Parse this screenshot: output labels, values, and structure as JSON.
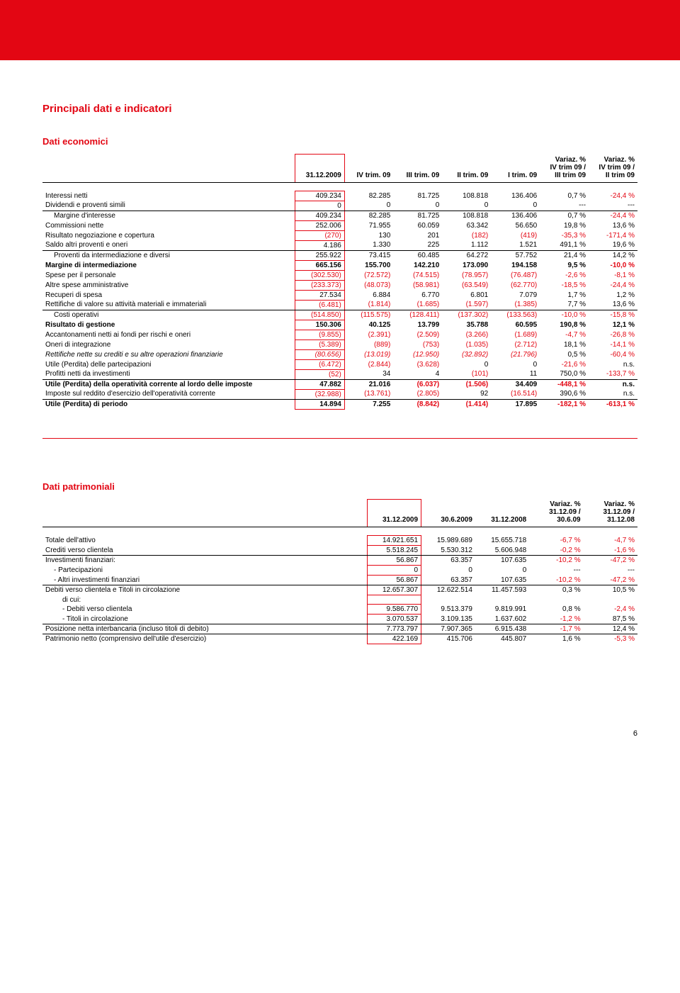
{
  "page_number": "6",
  "section_title": "Principali dati e indicatori",
  "economic": {
    "title": "Dati economici",
    "headers": [
      "",
      "31.12.2009",
      "IV trim. 09",
      "III trim. 09",
      "II trim. 09",
      "I trim. 09",
      "Variaz. %\nIV trim 09 /\nIII trim 09",
      "Variaz. %\nIV trim 09 /\nII trim 09"
    ],
    "rows": [
      {
        "l": "Interessi netti",
        "c": "",
        "v": [
          "409.234",
          "82.285",
          "81.725",
          "108.818",
          "136.406",
          "0,7 %",
          "-24,4 %"
        ]
      },
      {
        "l": "Dividendi e proventi simili",
        "c": "",
        "u": 1,
        "v": [
          "0",
          "0",
          "0",
          "0",
          "0",
          "---",
          "---"
        ]
      },
      {
        "l": "Margine d'interesse",
        "c": "indent1",
        "v": [
          "409.234",
          "82.285",
          "81.725",
          "108.818",
          "136.406",
          "0,7 %",
          "-24,4 %"
        ]
      },
      {
        "l": "Commissioni nette",
        "c": "",
        "v": [
          "252.006",
          "71.955",
          "60.059",
          "63.342",
          "56.650",
          "19,8 %",
          "13,6 %"
        ]
      },
      {
        "l": "Risultato negoziazione e copertura",
        "c": "",
        "v": [
          "(270)",
          "130",
          "201",
          "(182)",
          "(419)",
          "-35,3 %",
          "-171,4 %"
        ]
      },
      {
        "l": "Saldo altri proventi e oneri",
        "c": "",
        "u": 1,
        "v": [
          "4.186",
          "1.330",
          "225",
          "1.112",
          "1.521",
          "491,1 %",
          "19,6 %"
        ]
      },
      {
        "l": "Proventi da intermediazione e diversi",
        "c": "indent1",
        "v": [
          "255.922",
          "73.415",
          "60.485",
          "64.272",
          "57.752",
          "21,4 %",
          "14,2 %"
        ]
      },
      {
        "l": "Margine di intermediazione",
        "c": "",
        "b": 1,
        "v": [
          "665.156",
          "155.700",
          "142.210",
          "173.090",
          "194.158",
          "9,5 %",
          "-10,0 %"
        ]
      },
      {
        "l": "Spese per il personale",
        "c": "",
        "v": [
          "(302.530)",
          "(72.572)",
          "(74.515)",
          "(78.957)",
          "(76.487)",
          "-2,6 %",
          "-8,1 %"
        ]
      },
      {
        "l": "Altre spese amministrative",
        "c": "",
        "v": [
          "(233.373)",
          "(48.073)",
          "(58.981)",
          "(63.549)",
          "(62.770)",
          "-18,5 %",
          "-24,4 %"
        ]
      },
      {
        "l": "Recuperi di spesa",
        "c": "",
        "v": [
          "27.534",
          "6.884",
          "6.770",
          "6.801",
          "7.079",
          "1,7 %",
          "1,2 %"
        ]
      },
      {
        "l": "Rettifiche di valore su attività materiali e immateriali",
        "c": "",
        "u": 1,
        "v": [
          "(6.481)",
          "(1.814)",
          "(1.685)",
          "(1.597)",
          "(1.385)",
          "7,7 %",
          "13,6 %"
        ]
      },
      {
        "l": "Costi operativi",
        "c": "indent1",
        "v": [
          "(514.850)",
          "(115.575)",
          "(128.411)",
          "(137.302)",
          "(133.563)",
          "-10,0 %",
          "-15,8 %"
        ]
      },
      {
        "l": "Risultato di gestione",
        "c": "",
        "b": 1,
        "v": [
          "150.306",
          "40.125",
          "13.799",
          "35.788",
          "60.595",
          "190,8 %",
          "12,1 %"
        ]
      },
      {
        "l": "Accantonamenti netti ai fondi per rischi e oneri",
        "c": "",
        "v": [
          "(9.855)",
          "(2.391)",
          "(2.509)",
          "(3.266)",
          "(1.689)",
          "-4,7 %",
          "-26,8 %"
        ]
      },
      {
        "l": "Oneri di integrazione",
        "c": "",
        "v": [
          "(5.389)",
          "(889)",
          "(753)",
          "(1.035)",
          "(2.712)",
          "18,1 %",
          "-14,1 %"
        ]
      },
      {
        "l": "Rettifiche  nette su crediti e su altre operazioni finanziarie",
        "c": "",
        "v": [
          "(80.656)",
          "(13.019)",
          "(12.950)",
          "(32.892)",
          "(21.796)",
          "0,5 %",
          "-60,4 %"
        ],
        "it": 1
      },
      {
        "l": "Utile (Perdita) delle partecipazioni",
        "c": "",
        "v": [
          "(6.472)",
          "(2.844)",
          "(3.628)",
          "0",
          "0",
          "-21,6 %",
          "n.s."
        ]
      },
      {
        "l": "Profitti netti da investimenti",
        "c": "",
        "u": 1,
        "v": [
          "(52)",
          "34",
          "4",
          "(101)",
          "11",
          "750,0 %",
          "-133,7 %"
        ]
      },
      {
        "l": "Utile (Perdita) della operatività corrente al lordo delle imposte",
        "c": "",
        "b": 1,
        "v": [
          "47.882",
          "21.016",
          "(6.037)",
          "(1.506)",
          "34.409",
          "-448,1 %",
          "n.s."
        ]
      },
      {
        "l": "Imposte sul reddito d'esercizio dell'operatività corrente",
        "c": "",
        "u": 1,
        "v": [
          "(32.988)",
          "(13.761)",
          "(2.805)",
          "92",
          "(16.514)",
          "390,6 %",
          "n.s."
        ]
      },
      {
        "l": "Utile (Perdita) di periodo",
        "c": "",
        "b": 1,
        "v": [
          "14.894",
          "7.255",
          "(8.842)",
          "(1.414)",
          "17.895",
          "-182,1 %",
          "-613,1 %"
        ]
      }
    ]
  },
  "patrimonial": {
    "title": "Dati patrimoniali",
    "headers": [
      "",
      "31.12.2009",
      "30.6.2009",
      "31.12.2008",
      "Variaz. %\n31.12.09 /\n30.6.09",
      "Variaz. %\n31.12.09 /\n31.12.08"
    ],
    "rows": [
      {
        "l": "Totale dell'attivo",
        "c": "",
        "v": [
          "14.921.651",
          "15.989.689",
          "15.655.718",
          "-6,7 %",
          "-4,7 %"
        ]
      },
      {
        "l": "Crediti verso clientela",
        "c": "",
        "u": 1,
        "v": [
          "5.518.245",
          "5.530.312",
          "5.606.948",
          "-0,2 %",
          "-1,6 %"
        ]
      },
      {
        "l": "Investimenti finanziari:",
        "c": "",
        "v": [
          "56.867",
          "63.357",
          "107.635",
          "-10,2 %",
          "-47,2 %"
        ]
      },
      {
        "l": "-  Partecipazioni",
        "c": "indent1",
        "v": [
          "0",
          "0",
          "0",
          "---",
          "---"
        ]
      },
      {
        "l": "-  Altri investimenti finanziari",
        "c": "indent1",
        "u": 1,
        "v": [
          "56.867",
          "63.357",
          "107.635",
          "-10,2 %",
          "-47,2 %"
        ]
      },
      {
        "l": "Debiti verso clientela e Titoli in circolazione",
        "c": "",
        "v": [
          "12.657.307",
          "12.622.514",
          "11.457.593",
          "0,3 %",
          "10,5 %"
        ]
      },
      {
        "l": "di cui:",
        "c": "indent2",
        "v": [
          "",
          "",
          "",
          "",
          ""
        ]
      },
      {
        "l": "- Debiti verso clientela",
        "c": "indent2",
        "v": [
          "9.586.770",
          "9.513.379",
          "9.819.991",
          "0,8 %",
          "-2,4 %"
        ]
      },
      {
        "l": "- Titoli in circolazione",
        "c": "indent2",
        "u": 1,
        "v": [
          "3.070.537",
          "3.109.135",
          "1.637.602",
          "-1,2 %",
          "87,5 %"
        ]
      },
      {
        "l": "Posizione netta interbancaria (incluso titoli di debito)",
        "c": "",
        "u": 1,
        "v": [
          "7.773.797",
          "7.907.365",
          "6.915.438",
          "-1,7 %",
          "12,4 %"
        ]
      },
      {
        "l": "Patrimonio netto (comprensivo dell'utile d'esercizio)",
        "c": "",
        "v": [
          "422.169",
          "415.706",
          "445.807",
          "1,6 %",
          "-5,3 %"
        ]
      }
    ]
  }
}
